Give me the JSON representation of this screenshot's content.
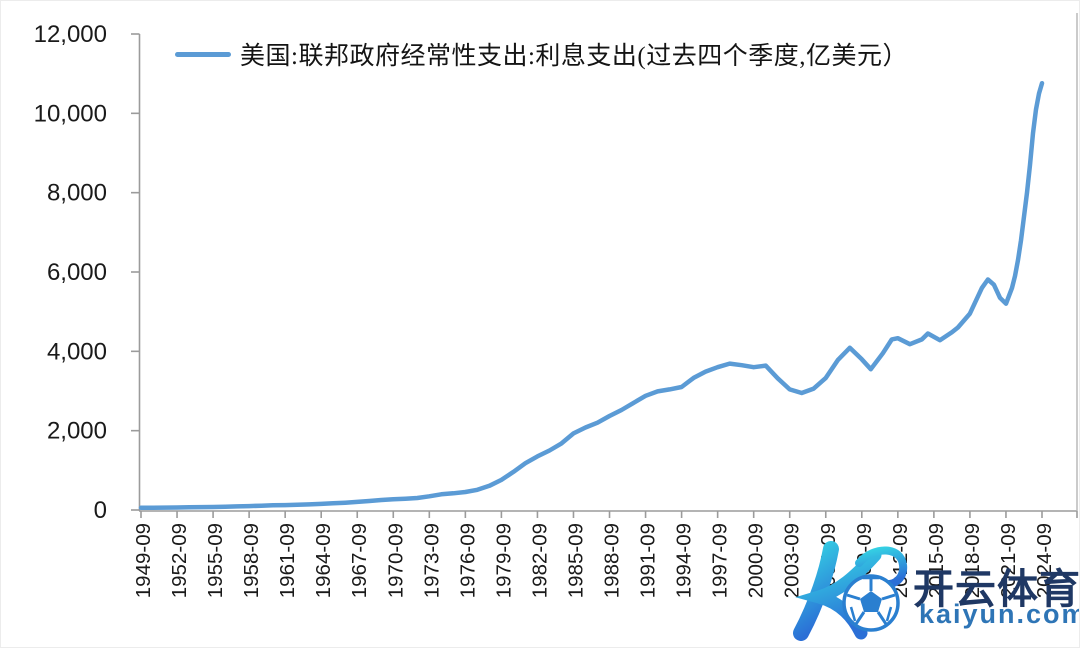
{
  "chart_data": {
    "type": "line",
    "legend_label": "美国:联邦政府经常性支出:利息支出(过去四个季度,亿美元）",
    "series_name": "美国:联邦政府经常性支出:利息支出(过去四个季度,亿美元）",
    "line_color": "#5b9bd5",
    "ylabel": "",
    "xlabel": "",
    "ylim": [
      0,
      12000
    ],
    "grid": false,
    "legend_position": "top",
    "y_tick_labels": [
      "12,000",
      "10,000",
      "8,000",
      "6,000",
      "4,000",
      "2,000",
      "0"
    ],
    "x_tick_labels": [
      "1949-09",
      "1952-09",
      "1955-09",
      "1958-09",
      "1961-09",
      "1964-09",
      "1967-09",
      "1970-09",
      "1973-09",
      "1976-09",
      "1979-09",
      "1982-09",
      "1985-09",
      "1988-09",
      "1991-09",
      "1994-09",
      "1997-09",
      "2000-09",
      "2003-09",
      "2006-09",
      "2009-09",
      "2012-09",
      "2015-09",
      "2018-09",
      "2021-09",
      "2024-09"
    ],
    "points": [
      [
        "1949-09",
        55
      ],
      [
        "1950-09",
        58
      ],
      [
        "1951-09",
        60
      ],
      [
        "1952-09",
        63
      ],
      [
        "1953-09",
        68
      ],
      [
        "1954-09",
        72
      ],
      [
        "1955-09",
        76
      ],
      [
        "1956-09",
        83
      ],
      [
        "1957-09",
        92
      ],
      [
        "1958-09",
        98
      ],
      [
        "1959-09",
        108
      ],
      [
        "1960-09",
        118
      ],
      [
        "1961-09",
        124
      ],
      [
        "1962-09",
        133
      ],
      [
        "1963-09",
        142
      ],
      [
        "1964-09",
        155
      ],
      [
        "1965-09",
        168
      ],
      [
        "1966-09",
        185
      ],
      [
        "1967-09",
        205
      ],
      [
        "1968-09",
        228
      ],
      [
        "1969-09",
        252
      ],
      [
        "1970-09",
        272
      ],
      [
        "1971-09",
        285
      ],
      [
        "1972-09",
        302
      ],
      [
        "1973-09",
        345
      ],
      [
        "1974-09",
        395
      ],
      [
        "1975-09",
        420
      ],
      [
        "1976-09",
        455
      ],
      [
        "1977-09",
        510
      ],
      [
        "1978-09",
        610
      ],
      [
        "1979-09",
        760
      ],
      [
        "1980-09",
        960
      ],
      [
        "1981-09",
        1180
      ],
      [
        "1982-09",
        1350
      ],
      [
        "1983-09",
        1500
      ],
      [
        "1984-09",
        1680
      ],
      [
        "1985-09",
        1930
      ],
      [
        "1986-09",
        2080
      ],
      [
        "1987-09",
        2200
      ],
      [
        "1988-09",
        2370
      ],
      [
        "1989-09",
        2520
      ],
      [
        "1990-09",
        2700
      ],
      [
        "1991-09",
        2880
      ],
      [
        "1992-09",
        2990
      ],
      [
        "1993-09",
        3040
      ],
      [
        "1994-09",
        3100
      ],
      [
        "1995-09",
        3330
      ],
      [
        "1996-09",
        3490
      ],
      [
        "1997-09",
        3600
      ],
      [
        "1998-09",
        3690
      ],
      [
        "1999-09",
        3650
      ],
      [
        "2000-09",
        3600
      ],
      [
        "2001-09",
        3640
      ],
      [
        "2002-09",
        3320
      ],
      [
        "2003-09",
        3040
      ],
      [
        "2004-09",
        2950
      ],
      [
        "2005-09",
        3060
      ],
      [
        "2006-09",
        3330
      ],
      [
        "2007-09",
        3780
      ],
      [
        "2008-09",
        4090
      ],
      [
        "2009-09",
        3800
      ],
      [
        "2010-06",
        3550
      ],
      [
        "2011-06",
        3950
      ],
      [
        "2012-03",
        4300
      ],
      [
        "2012-09",
        4330
      ],
      [
        "2013-09",
        4180
      ],
      [
        "2014-09",
        4300
      ],
      [
        "2015-03",
        4450
      ],
      [
        "2016-03",
        4280
      ],
      [
        "2017-03",
        4480
      ],
      [
        "2017-09",
        4600
      ],
      [
        "2018-09",
        4950
      ],
      [
        "2019-09",
        5600
      ],
      [
        "2020-03",
        5810
      ],
      [
        "2020-09",
        5680
      ],
      [
        "2021-03",
        5350
      ],
      [
        "2021-09",
        5200
      ],
      [
        "2022-03",
        5600
      ],
      [
        "2022-06",
        5900
      ],
      [
        "2022-09",
        6300
      ],
      [
        "2022-12",
        6800
      ],
      [
        "2023-03",
        7400
      ],
      [
        "2023-06",
        8000
      ],
      [
        "2023-09",
        8700
      ],
      [
        "2023-12",
        9500
      ],
      [
        "2024-03",
        10100
      ],
      [
        "2024-06",
        10500
      ],
      [
        "2024-09",
        10760
      ]
    ]
  },
  "watermark": {
    "brand_cn": "开云体育",
    "domain": "kaiyun.com",
    "logo_color_top": "#2fd0e2",
    "logo_color_bottom": "#2b6fd6",
    "brand_color": "#1f3864",
    "domain_color": "#2e75b6"
  },
  "style": {
    "axis_color": "#9b9b9b",
    "tick_label_color": "#1a1a1a"
  }
}
